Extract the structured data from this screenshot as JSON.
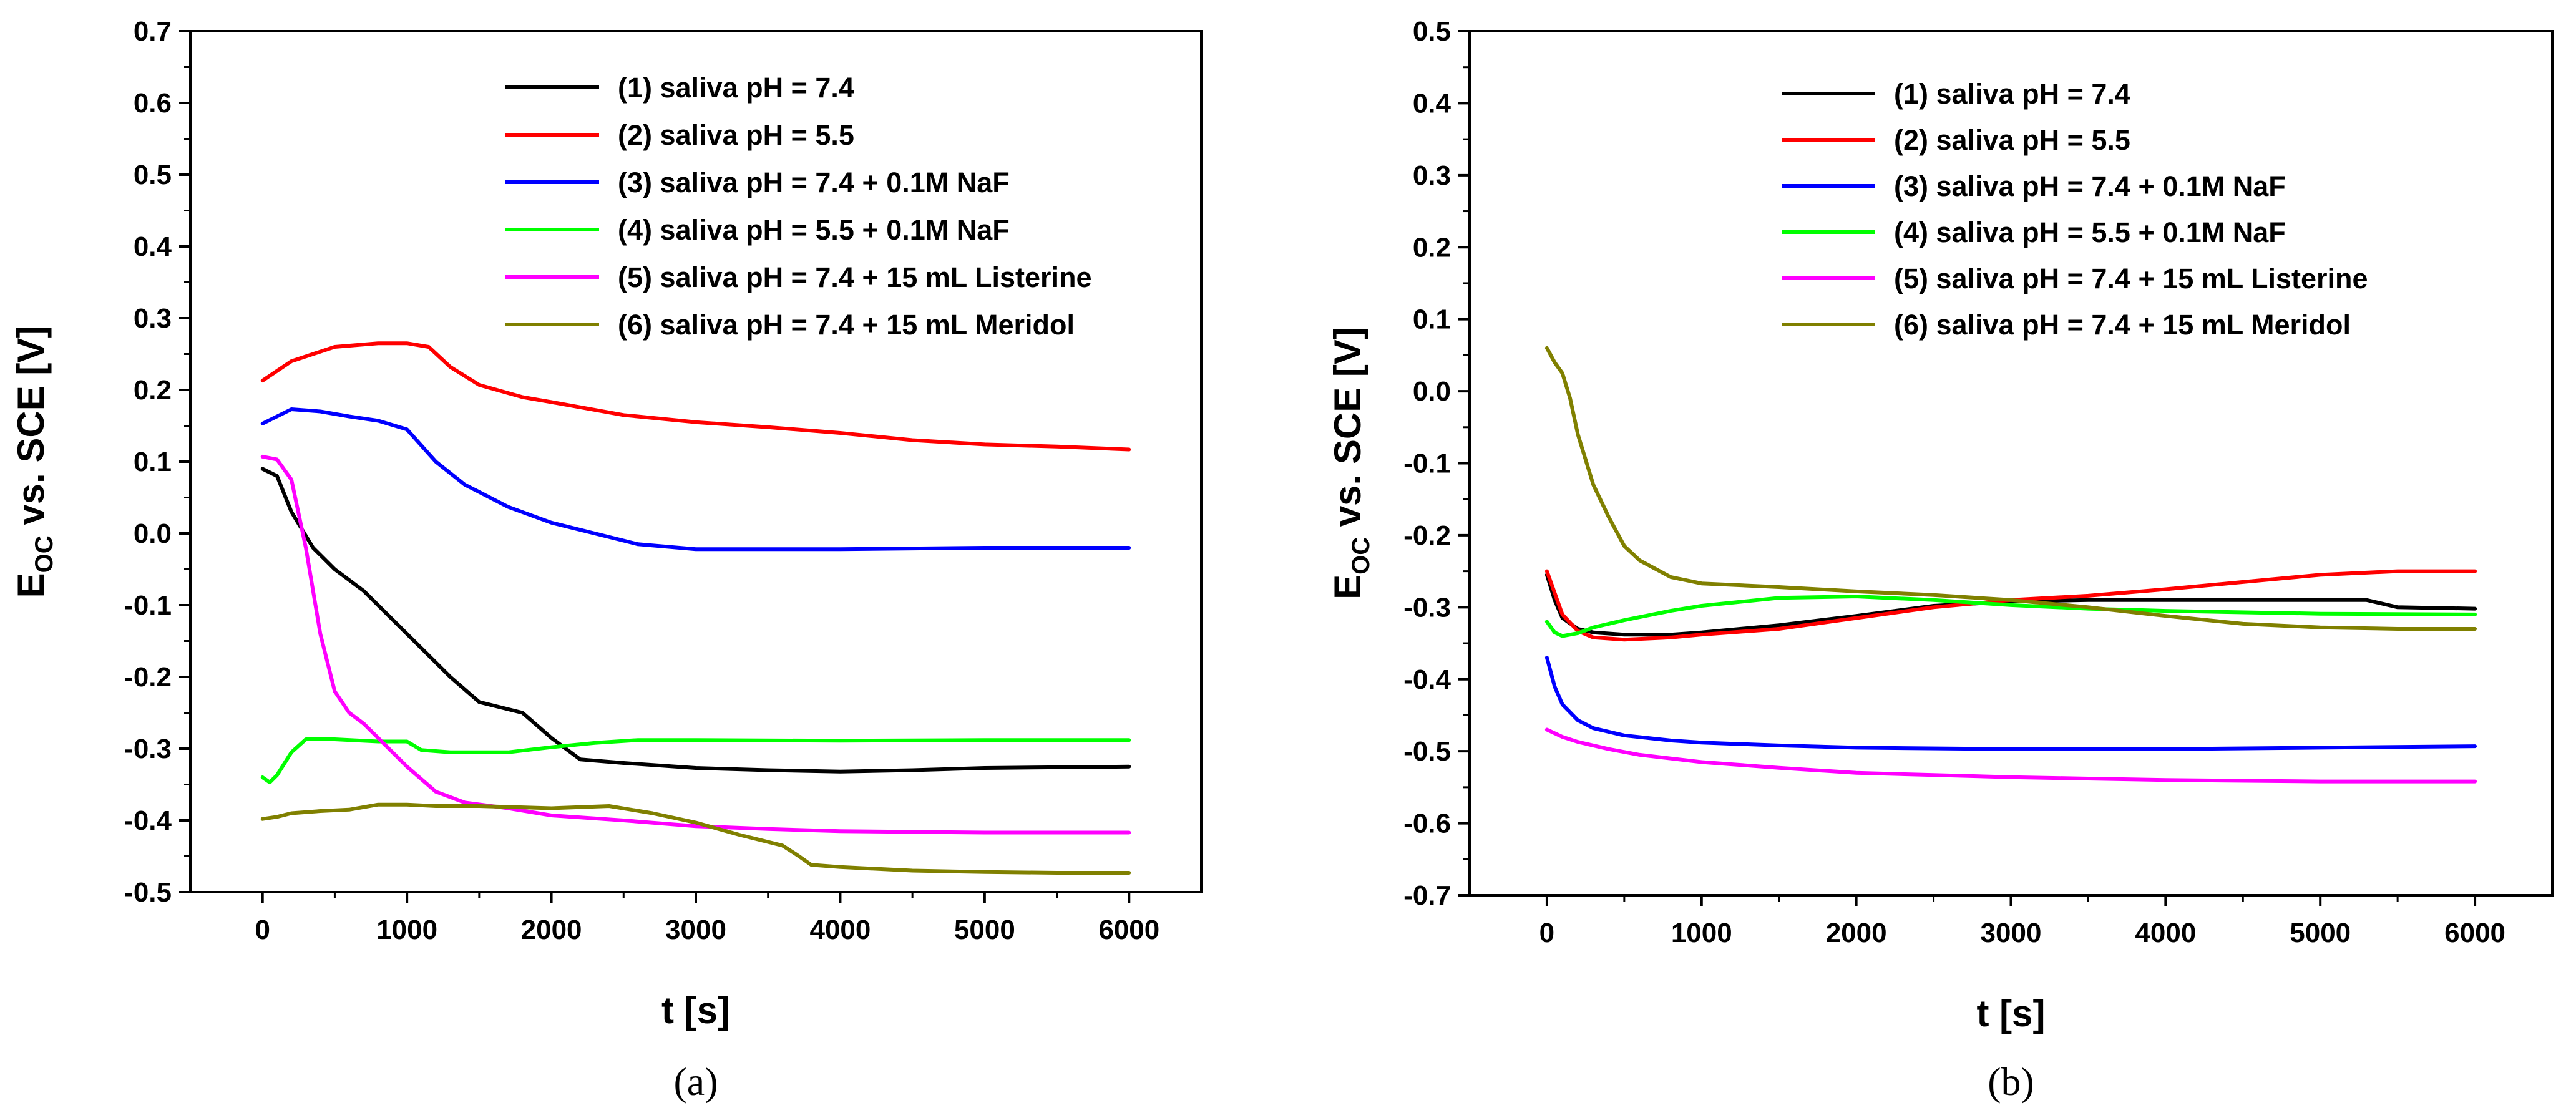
{
  "chart_data": [
    {
      "type": "line",
      "panel_label": "(a)",
      "xlabel": "t [s]",
      "ylabel_main": "E",
      "ylabel_sub": "OC",
      "ylabel_rest": " vs. SCE [V]",
      "xlim": [
        -500,
        6500
      ],
      "ylim": [
        -0.5,
        0.7
      ],
      "xticks": [
        "0",
        "1000",
        "2000",
        "3000",
        "4000",
        "5000",
        "6000"
      ],
      "xtick_values": [
        0,
        1000,
        2000,
        3000,
        4000,
        5000,
        6000
      ],
      "yticks": [
        "0.7",
        "0.6",
        "0.5",
        "0.4",
        "0.3",
        "0.2",
        "0.1",
        "0.0",
        "-0.1",
        "-0.2",
        "-0.3",
        "-0.4",
        "-0.5"
      ],
      "ytick_values": [
        0.7,
        0.6,
        0.5,
        0.4,
        0.3,
        0.2,
        0.1,
        0.0,
        -0.1,
        -0.2,
        -0.3,
        -0.4,
        -0.5
      ],
      "grid": false,
      "legend_position": "top-right",
      "series": [
        {
          "name": "(1) saliva pH = 7.4",
          "color": "#000000",
          "x": [
            0,
            100,
            200,
            350,
            500,
            700,
            1000,
            1300,
            1500,
            1800,
            2000,
            2200,
            2500,
            3000,
            3500,
            4000,
            4500,
            5000,
            6000
          ],
          "y": [
            0.09,
            0.08,
            0.03,
            -0.02,
            -0.05,
            -0.08,
            -0.14,
            -0.2,
            -0.235,
            -0.25,
            -0.285,
            -0.315,
            -0.32,
            -0.327,
            -0.33,
            -0.332,
            -0.33,
            -0.327,
            -0.325
          ]
        },
        {
          "name": "(2) saliva pH = 5.5",
          "color": "#ff0000",
          "x": [
            0,
            200,
            500,
            800,
            1000,
            1150,
            1300,
            1500,
            1800,
            2000,
            2500,
            3000,
            3500,
            4000,
            4500,
            5000,
            5500,
            6000
          ],
          "y": [
            0.213,
            0.24,
            0.26,
            0.265,
            0.265,
            0.26,
            0.232,
            0.207,
            0.19,
            0.183,
            0.165,
            0.155,
            0.148,
            0.14,
            0.13,
            0.124,
            0.121,
            0.117
          ]
        },
        {
          "name": "(3) saliva pH = 7.4 + 0.1M NaF",
          "color": "#0000ff",
          "x": [
            0,
            200,
            400,
            600,
            800,
            1000,
            1200,
            1400,
            1700,
            2000,
            2300,
            2600,
            3000,
            3500,
            4000,
            4500,
            5000,
            6000
          ],
          "y": [
            0.153,
            0.173,
            0.17,
            0.163,
            0.157,
            0.145,
            0.1,
            0.068,
            0.037,
            0.015,
            0.0,
            -0.015,
            -0.022,
            -0.022,
            -0.022,
            -0.021,
            -0.02,
            -0.02
          ]
        },
        {
          "name": "(4) saliva pH = 5.5 + 0.1M NaF",
          "color": "#00ff00",
          "x": [
            0,
            50,
            100,
            200,
            300,
            500,
            800,
            1000,
            1100,
            1300,
            1700,
            2000,
            2300,
            2600,
            3000,
            4000,
            5000,
            6000
          ],
          "y": [
            -0.34,
            -0.347,
            -0.337,
            -0.305,
            -0.287,
            -0.287,
            -0.29,
            -0.29,
            -0.302,
            -0.305,
            -0.305,
            -0.298,
            -0.292,
            -0.288,
            -0.288,
            -0.289,
            -0.288,
            -0.288
          ]
        },
        {
          "name": "(5) saliva pH = 7.4 + 15 mL Listerine",
          "color": "#ff00ff",
          "x": [
            0,
            100,
            200,
            300,
            400,
            500,
            600,
            700,
            800,
            900,
            1000,
            1200,
            1400,
            1700,
            2000,
            2500,
            3000,
            3500,
            4000,
            5000,
            6000
          ],
          "y": [
            0.107,
            0.103,
            0.075,
            -0.02,
            -0.14,
            -0.22,
            -0.25,
            -0.265,
            -0.285,
            -0.305,
            -0.325,
            -0.36,
            -0.375,
            -0.383,
            -0.393,
            -0.4,
            -0.408,
            -0.412,
            -0.415,
            -0.417,
            -0.417
          ]
        },
        {
          "name": "(6) saliva pH = 7.4 + 15 mL Meridol",
          "color": "#808000",
          "x": [
            0,
            100,
            200,
            400,
            600,
            800,
            1000,
            1200,
            1500,
            2000,
            2400,
            2700,
            3000,
            3300,
            3600,
            3700,
            3800,
            4000,
            4500,
            5000,
            5500,
            6000
          ],
          "y": [
            -0.398,
            -0.395,
            -0.39,
            -0.387,
            -0.385,
            -0.378,
            -0.378,
            -0.38,
            -0.38,
            -0.383,
            -0.38,
            -0.39,
            -0.403,
            -0.42,
            -0.435,
            -0.448,
            -0.462,
            -0.465,
            -0.47,
            -0.472,
            -0.473,
            -0.473
          ]
        }
      ]
    },
    {
      "type": "line",
      "panel_label": "(b)",
      "xlabel": "t [s]",
      "ylabel_main": "E",
      "ylabel_sub": "OC",
      "ylabel_rest": " vs. SCE [V]",
      "xlim": [
        -500,
        6500
      ],
      "ylim": [
        -0.7,
        0.5
      ],
      "xticks": [
        "0",
        "1000",
        "2000",
        "3000",
        "4000",
        "5000",
        "6000"
      ],
      "xtick_values": [
        0,
        1000,
        2000,
        3000,
        4000,
        5000,
        6000
      ],
      "yticks": [
        "0.5",
        "0.4",
        "0.3",
        "0.2",
        "0.1",
        "0.0",
        "-0.1",
        "-0.2",
        "-0.3",
        "-0.4",
        "-0.5",
        "-0.6",
        "-0.7"
      ],
      "ytick_values": [
        0.5,
        0.4,
        0.3,
        0.2,
        0.1,
        0.0,
        -0.1,
        -0.2,
        -0.3,
        -0.4,
        -0.5,
        -0.6,
        -0.7
      ],
      "grid": false,
      "legend_position": "top-right",
      "series": [
        {
          "name": "(1) saliva pH = 7.4",
          "color": "#000000",
          "x": [
            0,
            50,
            100,
            200,
            300,
            500,
            800,
            1000,
            1500,
            2000,
            2500,
            3000,
            3500,
            4000,
            4500,
            5000,
            5300,
            5500,
            6000
          ],
          "y": [
            -0.255,
            -0.29,
            -0.315,
            -0.33,
            -0.335,
            -0.338,
            -0.338,
            -0.335,
            -0.325,
            -0.312,
            -0.298,
            -0.292,
            -0.29,
            -0.29,
            -0.29,
            -0.29,
            -0.29,
            -0.3,
            -0.302
          ]
        },
        {
          "name": "(2) saliva pH = 5.5",
          "color": "#ff0000",
          "x": [
            0,
            50,
            100,
            200,
            300,
            500,
            800,
            1000,
            1500,
            2000,
            2500,
            3000,
            3500,
            4000,
            4500,
            5000,
            5500,
            6000
          ],
          "y": [
            -0.25,
            -0.28,
            -0.31,
            -0.333,
            -0.342,
            -0.345,
            -0.342,
            -0.338,
            -0.33,
            -0.315,
            -0.3,
            -0.29,
            -0.284,
            -0.275,
            -0.265,
            -0.255,
            -0.25,
            -0.25
          ]
        },
        {
          "name": "(3) saliva pH = 7.4 + 0.1M NaF",
          "color": "#0000ff",
          "x": [
            0,
            50,
            100,
            200,
            300,
            500,
            800,
            1000,
            1500,
            2000,
            3000,
            4000,
            5000,
            6000
          ],
          "y": [
            -0.37,
            -0.41,
            -0.435,
            -0.457,
            -0.468,
            -0.478,
            -0.485,
            -0.488,
            -0.492,
            -0.495,
            -0.497,
            -0.497,
            -0.495,
            -0.493
          ]
        },
        {
          "name": "(4) saliva pH = 5.5 + 0.1M NaF",
          "color": "#00ff00",
          "x": [
            0,
            50,
            100,
            200,
            300,
            500,
            800,
            1000,
            1500,
            2000,
            2500,
            3000,
            3500,
            4000,
            5000,
            6000
          ],
          "y": [
            -0.32,
            -0.335,
            -0.34,
            -0.336,
            -0.328,
            -0.318,
            -0.305,
            -0.298,
            -0.287,
            -0.285,
            -0.29,
            -0.297,
            -0.302,
            -0.305,
            -0.309,
            -0.31
          ]
        },
        {
          "name": "(5) saliva pH = 7.4 + 15 mL Listerine",
          "color": "#ff00ff",
          "x": [
            0,
            100,
            200,
            400,
            600,
            800,
            1000,
            1500,
            2000,
            2500,
            3000,
            3500,
            4000,
            5000,
            6000
          ],
          "y": [
            -0.47,
            -0.48,
            -0.487,
            -0.497,
            -0.505,
            -0.51,
            -0.515,
            -0.523,
            -0.53,
            -0.533,
            -0.536,
            -0.538,
            -0.54,
            -0.542,
            -0.542
          ]
        },
        {
          "name": "(6) saliva pH = 7.4 + 15 mL Meridol",
          "color": "#808000",
          "x": [
            0,
            50,
            100,
            150,
            200,
            300,
            400,
            500,
            600,
            800,
            1000,
            1500,
            2000,
            2500,
            3000,
            3500,
            4000,
            4500,
            5000,
            5500,
            6000
          ],
          "y": [
            0.06,
            0.04,
            0.025,
            -0.01,
            -0.06,
            -0.13,
            -0.175,
            -0.215,
            -0.235,
            -0.258,
            -0.267,
            -0.272,
            -0.278,
            -0.283,
            -0.29,
            -0.3,
            -0.312,
            -0.323,
            -0.328,
            -0.33,
            -0.33
          ]
        }
      ]
    }
  ]
}
